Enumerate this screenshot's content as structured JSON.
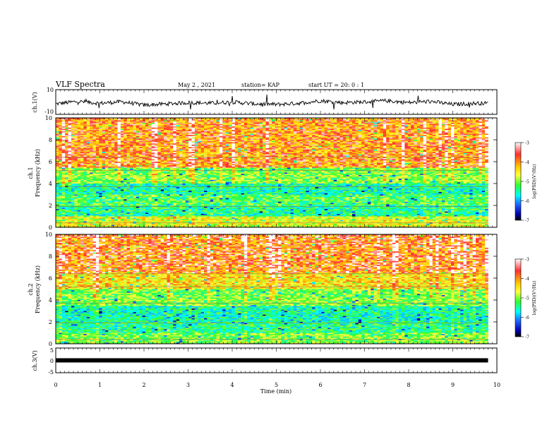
{
  "header": {
    "title": "VLF Spectra",
    "date": "May 2  , 2021",
    "station": "station= KAP",
    "start_time": "start  UT  =   20: 0  : 1"
  },
  "colorbar": {
    "label": "log(PSD)(V²/Hz)",
    "ticks": [
      "-3",
      "-4",
      "-5",
      "-6",
      "-7"
    ],
    "colors": [
      "#ffffff",
      "#ff3030",
      "#ffd000",
      "#ffff40",
      "#30ff30",
      "#00ffff",
      "#2060ff",
      "#0000b0",
      "#000000"
    ]
  },
  "chart_data": [
    {
      "type": "line",
      "name": "ch1-waveform",
      "ylabel": "ch.1(V)",
      "ylim": [
        -10,
        10
      ],
      "yticks": [
        "10",
        "-10"
      ],
      "xlim": [
        0,
        10
      ],
      "x": [
        0.0,
        0.5,
        1.0,
        1.5,
        2.0,
        2.5,
        3.0,
        3.5,
        4.0,
        4.5,
        5.0,
        5.5,
        6.0,
        6.5,
        7.0,
        7.5,
        8.0,
        8.5,
        9.0,
        9.5,
        9.8
      ],
      "y": [
        -1.5,
        0.5,
        -1.0,
        0.2,
        -2.5,
        -1.5,
        -0.5,
        -1.0,
        0,
        -1.5,
        -2.0,
        -1.0,
        1.0,
        -0.5,
        0,
        1.0,
        -0.5,
        0.5,
        -2.0,
        -1.0,
        -1.0
      ]
    },
    {
      "type": "heatmap",
      "name": "ch1-spectrogram",
      "ylabel": "ch.1\nFrequency (kHz)",
      "ylabel_lines": [
        "ch.1",
        "Frequency  (kHz)"
      ],
      "ylim": [
        0,
        10
      ],
      "yticks": [
        "10",
        "8",
        "6",
        "4",
        "2",
        "0"
      ],
      "xlim": [
        0,
        10
      ],
      "freq_bands_khz": [
        [
          0,
          1,
          -4.2
        ],
        [
          1,
          2,
          -5.0
        ],
        [
          2,
          3,
          -4.8
        ],
        [
          3,
          4,
          -5.1
        ],
        [
          4,
          5.5,
          -4.6
        ],
        [
          5.5,
          10,
          -3.6
        ]
      ]
    },
    {
      "type": "heatmap",
      "name": "ch2-spectrogram",
      "ylabel_lines": [
        "ch.2",
        "Frequency  (kHz)"
      ],
      "ylim": [
        0,
        10
      ],
      "yticks": [
        "10",
        "8",
        "6",
        "4",
        "2",
        "0"
      ],
      "xlim": [
        0,
        10
      ],
      "freq_bands_khz": [
        [
          0,
          1,
          -4.6
        ],
        [
          1,
          2,
          -5.0
        ],
        [
          2,
          3.5,
          -5.1
        ],
        [
          3.5,
          5,
          -4.6
        ],
        [
          5,
          6.5,
          -4.0
        ],
        [
          6.5,
          10,
          -3.5
        ]
      ]
    },
    {
      "type": "line",
      "name": "ch3-waveform",
      "ylabel": "ch.3(V)",
      "ylim": [
        -5,
        5
      ],
      "yticks": [
        "5",
        "0",
        "-5"
      ],
      "xlim": [
        0,
        10
      ],
      "x": [
        0,
        9.8
      ],
      "y": [
        0,
        0
      ],
      "xlabel": "Time  (min)",
      "xticks": [
        "0",
        "1",
        "2",
        "3",
        "4",
        "5",
        "6",
        "7",
        "8",
        "9",
        "10"
      ]
    }
  ]
}
